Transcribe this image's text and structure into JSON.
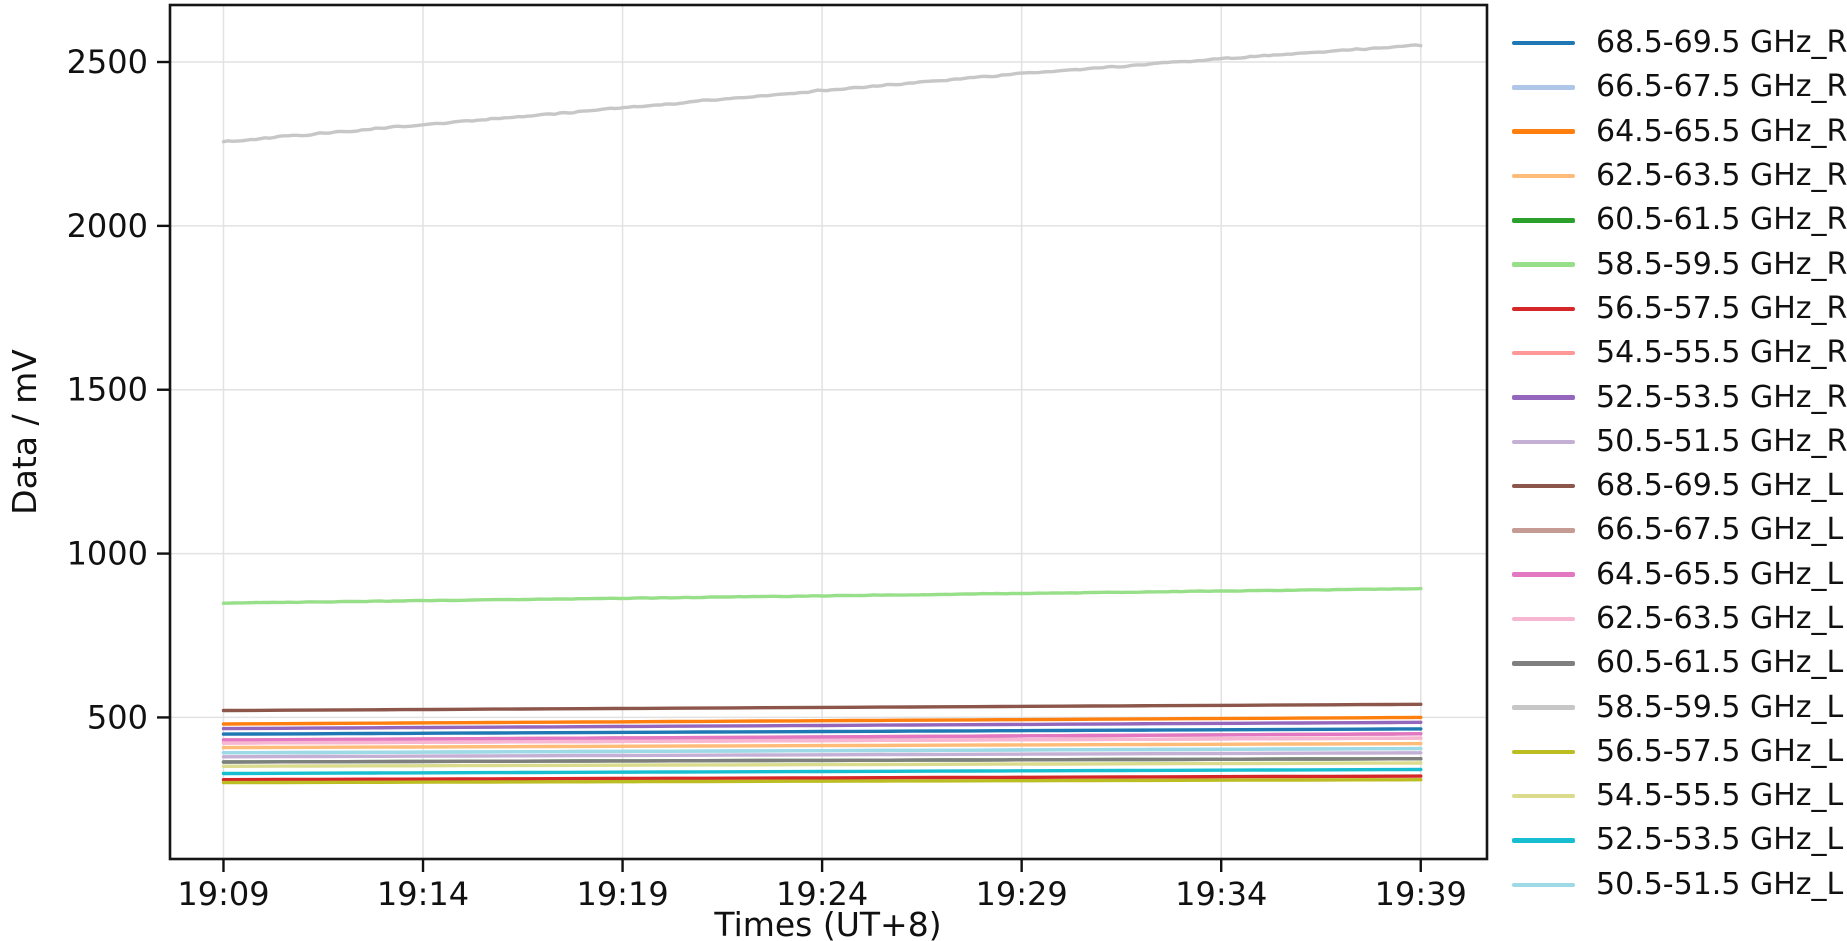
{
  "figure": {
    "background_color": "#ffffff",
    "text_color": "#111111",
    "grid_color": "#e2e2e2"
  },
  "chart_data": {
    "type": "line",
    "title": "",
    "xlabel": "Times (UT+8)",
    "ylabel": "Data / mV",
    "grid": true,
    "legend_position": "right-outside",
    "x_tick_labels": [
      "19:09",
      "19:14",
      "19:19",
      "19:24",
      "19:29",
      "19:34",
      "19:39"
    ],
    "x_tick_minutes": [
      0,
      5,
      10,
      15,
      20,
      25,
      30
    ],
    "xlim_minutes": [
      -1.34,
      31.66
    ],
    "y_ticks": [
      500,
      1000,
      1500,
      2000,
      2500
    ],
    "ylim": [
      68,
      2674
    ],
    "x_range_note": "points given as [minutes after 19:09, mV]",
    "series": [
      {
        "name": "68.5-69.5 GHz_R",
        "color": "#1f77b4",
        "noise_mV": 0,
        "points": [
          [
            0,
            449
          ],
          [
            30,
            465
          ]
        ]
      },
      {
        "name": "66.5-67.5 GHz_R",
        "color": "#aec7e8",
        "noise_mV": 0,
        "points": [
          [
            0,
            392
          ],
          [
            30,
            405
          ]
        ]
      },
      {
        "name": "64.5-65.5 GHz_R",
        "color": "#ff7f0e",
        "noise_mV": 0,
        "points": [
          [
            0,
            480
          ],
          [
            30,
            500
          ]
        ]
      },
      {
        "name": "62.5-63.5 GHz_R",
        "color": "#ffbb78",
        "noise_mV": 0,
        "points": [
          [
            0,
            408
          ],
          [
            30,
            420
          ]
        ]
      },
      {
        "name": "60.5-61.5 GHz_R",
        "color": "#2ca02c",
        "noise_mV": 0,
        "points": [
          [
            0,
            364
          ],
          [
            30,
            374
          ]
        ]
      },
      {
        "name": "58.5-59.5 GHz_R",
        "color": "#98df8a",
        "noise_mV": 1,
        "points": [
          [
            0,
            849
          ],
          [
            15,
            871
          ],
          [
            30,
            893
          ]
        ]
      },
      {
        "name": "56.5-57.5 GHz_R",
        "color": "#d62728",
        "noise_mV": 0,
        "points": [
          [
            0,
            310
          ],
          [
            30,
            321
          ]
        ]
      },
      {
        "name": "54.5-55.5 GHz_R",
        "color": "#ff9896",
        "noise_mV": 0,
        "points": [
          [
            0,
            422
          ],
          [
            30,
            437
          ]
        ]
      },
      {
        "name": "52.5-53.5 GHz_R",
        "color": "#9467bd",
        "noise_mV": 0,
        "points": [
          [
            0,
            466
          ],
          [
            30,
            485
          ]
        ]
      },
      {
        "name": "50.5-51.5 GHz_R",
        "color": "#c5b0d5",
        "noise_mV": 0,
        "points": [
          [
            0,
            380
          ],
          [
            30,
            392
          ]
        ]
      },
      {
        "name": "68.5-69.5 GHz_L",
        "color": "#8c564b",
        "noise_mV": 0,
        "points": [
          [
            0,
            521
          ],
          [
            30,
            540
          ]
        ]
      },
      {
        "name": "66.5-67.5 GHz_L",
        "color": "#c49c94",
        "noise_mV": 0,
        "points": [
          [
            0,
            431
          ],
          [
            30,
            450
          ]
        ]
      },
      {
        "name": "64.5-65.5 GHz_L",
        "color": "#e377c2",
        "noise_mV": 0,
        "points": [
          [
            0,
            431
          ],
          [
            30,
            450
          ]
        ]
      },
      {
        "name": "62.5-63.5 GHz_L",
        "color": "#f7b6d2",
        "noise_mV": 0,
        "points": [
          [
            0,
            422
          ],
          [
            30,
            437
          ]
        ]
      },
      {
        "name": "60.5-61.5 GHz_L",
        "color": "#7f7f7f",
        "noise_mV": 0,
        "points": [
          [
            0,
            364
          ],
          [
            30,
            374
          ]
        ]
      },
      {
        "name": "58.5-59.5 GHz_L",
        "color": "#c7c7c7",
        "noise_mV": 3,
        "points": [
          [
            0,
            2256
          ],
          [
            5,
            2309
          ],
          [
            10,
            2360
          ],
          [
            15,
            2413
          ],
          [
            20,
            2464
          ],
          [
            25,
            2510
          ],
          [
            30,
            2551
          ]
        ]
      },
      {
        "name": "56.5-57.5 GHz_L",
        "color": "#bcbd22",
        "noise_mV": 0,
        "points": [
          [
            0,
            301
          ],
          [
            30,
            310
          ]
        ]
      },
      {
        "name": "54.5-55.5 GHz_L",
        "color": "#dbdb8d",
        "noise_mV": 0,
        "points": [
          [
            0,
            351
          ],
          [
            30,
            361
          ]
        ]
      },
      {
        "name": "52.5-53.5 GHz_L",
        "color": "#17becf",
        "noise_mV": 0,
        "points": [
          [
            0,
            329
          ],
          [
            30,
            341
          ]
        ]
      },
      {
        "name": "50.5-51.5 GHz_L",
        "color": "#9edae5",
        "noise_mV": 0,
        "points": [
          [
            0,
            392
          ],
          [
            30,
            405
          ]
        ]
      }
    ]
  }
}
